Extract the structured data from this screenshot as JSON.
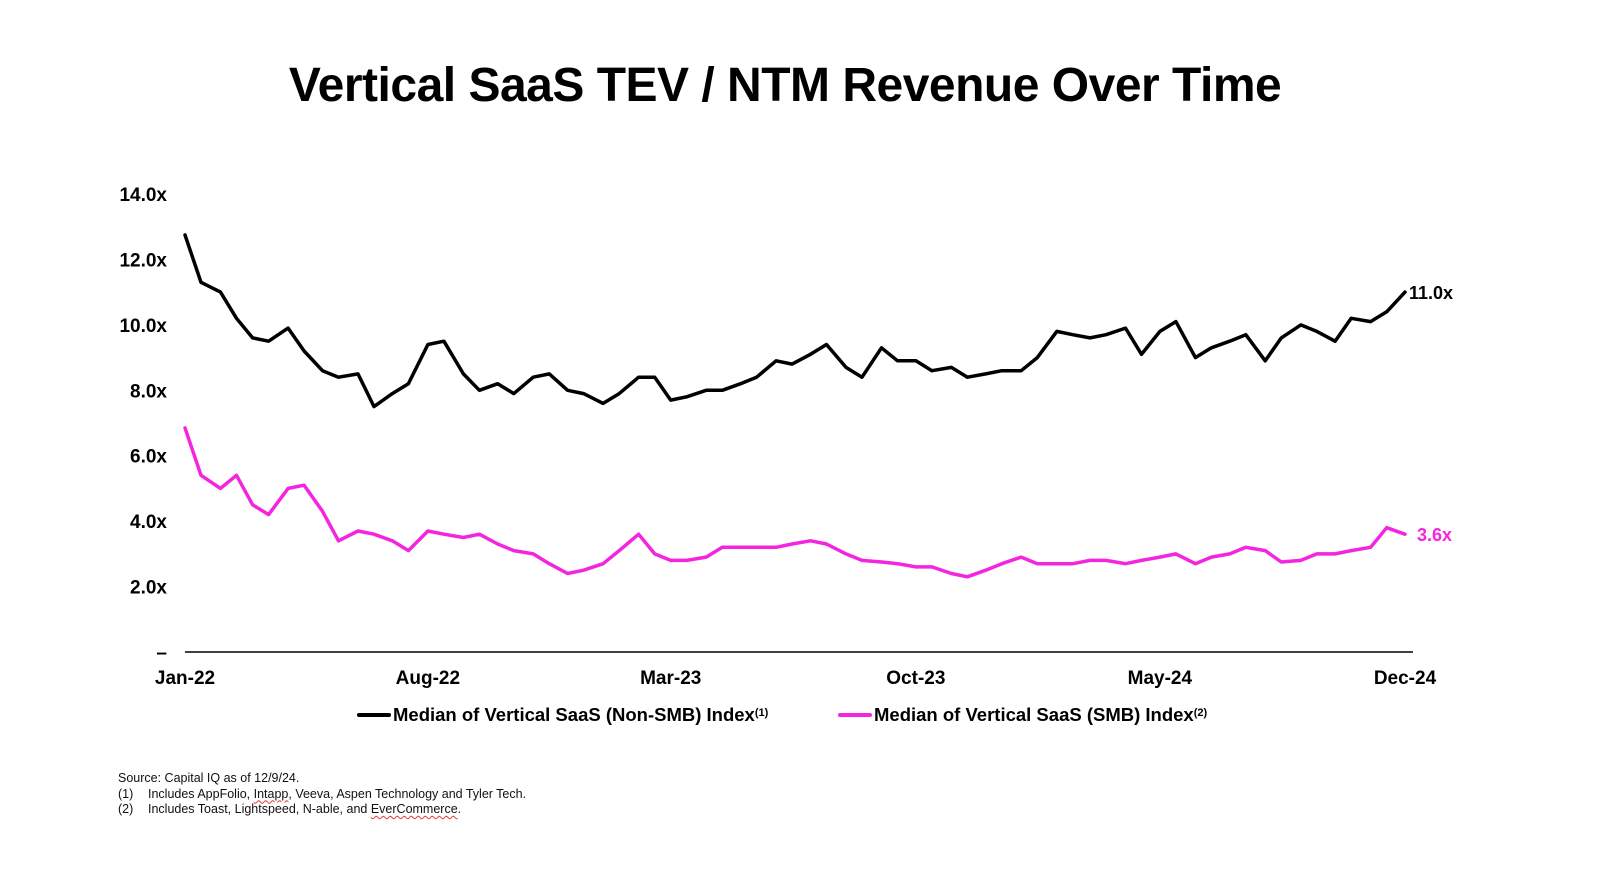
{
  "chart_data": {
    "type": "line",
    "title": "Vertical SaaS TEV / NTM Revenue Over Time",
    "xlabel": "",
    "ylabel": "",
    "ylim": [
      0,
      14
    ],
    "yticks": [
      "–",
      "2.0x",
      "4.0x",
      "6.0x",
      "8.0x",
      "10.0x",
      "12.0x",
      "14.0x"
    ],
    "ytick_values": [
      0,
      2,
      4,
      6,
      8,
      10,
      12,
      14
    ],
    "xticks": [
      "Jan-22",
      "Aug-22",
      "Mar-23",
      "Oct-23",
      "May-24",
      "Dec-24"
    ],
    "xtick_dates": [
      "2022-01-01",
      "2022-08-01",
      "2023-03-01",
      "2023-10-01",
      "2024-05-01",
      "2024-12-01"
    ],
    "grid": false,
    "legend_position": "bottom",
    "x": [
      "2022-01-01",
      "2022-01-15",
      "2022-02-01",
      "2022-02-15",
      "2022-03-01",
      "2022-03-15",
      "2022-04-01",
      "2022-04-15",
      "2022-05-01",
      "2022-05-15",
      "2022-06-01",
      "2022-06-15",
      "2022-07-01",
      "2022-07-15",
      "2022-08-01",
      "2022-08-15",
      "2022-09-01",
      "2022-09-15",
      "2022-10-01",
      "2022-10-15",
      "2022-11-01",
      "2022-11-15",
      "2022-12-01",
      "2022-12-15",
      "2023-01-01",
      "2023-01-15",
      "2023-02-01",
      "2023-02-15",
      "2023-03-01",
      "2023-03-15",
      "2023-04-01",
      "2023-04-15",
      "2023-05-01",
      "2023-05-15",
      "2023-06-01",
      "2023-06-15",
      "2023-07-01",
      "2023-07-15",
      "2023-08-01",
      "2023-08-15",
      "2023-09-01",
      "2023-09-15",
      "2023-10-01",
      "2023-10-15",
      "2023-11-01",
      "2023-11-15",
      "2023-12-01",
      "2023-12-15",
      "2024-01-01",
      "2024-01-15",
      "2024-02-01",
      "2024-02-15",
      "2024-03-01",
      "2024-03-15",
      "2024-04-01",
      "2024-04-15",
      "2024-05-01",
      "2024-05-15",
      "2024-06-01",
      "2024-06-15",
      "2024-07-01",
      "2024-07-15",
      "2024-08-01",
      "2024-08-15",
      "2024-09-01",
      "2024-09-15",
      "2024-10-01",
      "2024-10-15",
      "2024-11-01",
      "2024-11-15",
      "2024-12-09"
    ],
    "series": [
      {
        "name": "Median of Vertical SaaS (Non-SMB) Index",
        "footnote_ref": "(1)",
        "color": "#000000",
        "end_label": "11.0x",
        "values": [
          12.75,
          11.3,
          11.0,
          10.2,
          9.6,
          9.5,
          9.9,
          9.2,
          8.6,
          8.4,
          8.5,
          7.5,
          7.9,
          8.2,
          9.4,
          9.5,
          8.5,
          8.0,
          8.2,
          7.9,
          8.4,
          8.5,
          8.0,
          7.9,
          7.6,
          7.9,
          8.4,
          8.4,
          7.7,
          7.8,
          8.0,
          8.0,
          8.2,
          8.4,
          8.9,
          8.8,
          9.1,
          9.4,
          8.7,
          8.4,
          9.3,
          8.9,
          8.9,
          8.6,
          8.7,
          8.4,
          8.5,
          8.6,
          8.6,
          9.0,
          9.8,
          9.7,
          9.6,
          9.7,
          9.9,
          9.1,
          9.8,
          10.1,
          9.0,
          9.3,
          9.5,
          9.7,
          8.9,
          9.6,
          10.0,
          9.8,
          9.5,
          10.2,
          10.1,
          10.4,
          11.0
        ]
      },
      {
        "name": "Median of Vertical SaaS (SMB) Index",
        "footnote_ref": "(2)",
        "color": "#F425DE",
        "end_label": "3.6x",
        "values": [
          6.85,
          5.4,
          5.0,
          5.4,
          4.5,
          4.2,
          5.0,
          5.1,
          4.3,
          3.4,
          3.7,
          3.6,
          3.4,
          3.1,
          3.7,
          3.6,
          3.5,
          3.6,
          3.3,
          3.1,
          3.0,
          2.7,
          2.4,
          2.5,
          2.7,
          3.1,
          3.6,
          3.0,
          2.8,
          2.8,
          2.9,
          3.2,
          3.2,
          3.2,
          3.2,
          3.3,
          3.4,
          3.3,
          3.0,
          2.8,
          2.75,
          2.7,
          2.6,
          2.6,
          2.4,
          2.3,
          2.5,
          2.7,
          2.9,
          2.7,
          2.7,
          2.7,
          2.8,
          2.8,
          2.7,
          2.8,
          2.9,
          3.0,
          2.7,
          2.9,
          3.0,
          3.2,
          3.1,
          2.75,
          2.8,
          3.0,
          3.0,
          3.1,
          3.2,
          3.8,
          3.6
        ]
      }
    ]
  },
  "legend": {
    "items": [
      {
        "label": "Median of Vertical SaaS (Non-SMB) Index",
        "sup": "(1)"
      },
      {
        "label": "Median of Vertical SaaS (SMB) Index",
        "sup": "(2)"
      }
    ]
  },
  "footnotes": {
    "source": "Source: Capital IQ as of 12/9/24.",
    "notes": [
      {
        "num": "(1)",
        "pre": "Includes AppFolio, ",
        "flag": "Intapp",
        "post": ", Veeva, Aspen Technology and Tyler Tech."
      },
      {
        "num": "(2)",
        "pre": "Includes Toast, Lightspeed, N-able, and ",
        "flag": "EverCommerce",
        "post": "."
      }
    ]
  }
}
